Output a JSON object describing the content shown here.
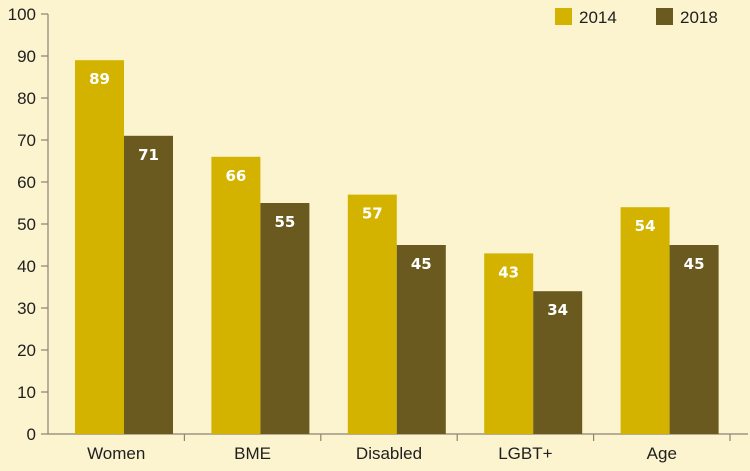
{
  "chart_data": {
    "type": "bar",
    "categories": [
      "Women",
      "BME",
      "Disabled",
      "LGBT+",
      "Age"
    ],
    "series": [
      {
        "name": "2014",
        "values": [
          89,
          66,
          57,
          43,
          54
        ],
        "color": "#d3b300"
      },
      {
        "name": "2018",
        "values": [
          71,
          55,
          45,
          34,
          45
        ],
        "color": "#6b5a1f"
      }
    ],
    "yticks": [
      0,
      10,
      20,
      30,
      40,
      50,
      60,
      70,
      80,
      90,
      100
    ],
    "ylim": [
      0,
      100
    ],
    "grid": false,
    "legend_position": "top-right",
    "axis_color": "#8a8470",
    "background": "#fcf3cf"
  }
}
